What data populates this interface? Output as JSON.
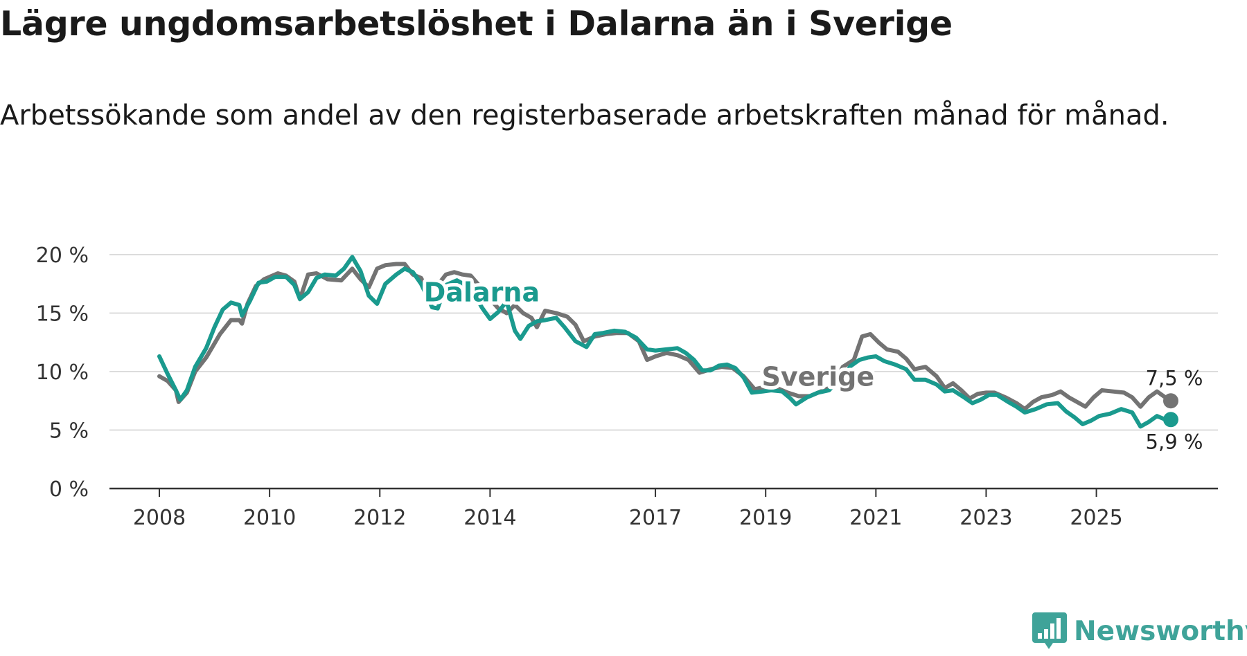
{
  "header": {
    "title": "Lägre ungdomsarbetslöshet i Dalarna än i Sverige",
    "subtitle": "Arbetssökande som andel av den registerbaserade arbetskraften månad för månad."
  },
  "brand": {
    "name": "Newsworthy",
    "color": "#3fa399",
    "icon": "newsworthy-logo-icon"
  },
  "chart_data": {
    "type": "line",
    "title": "Lägre ungdomsarbetslöshet i Dalarna än i Sverige",
    "subtitle": "Arbetssökande som andel av den registerbaserade arbetskraften månad för månad.",
    "xlabel": "",
    "ylabel": "",
    "xlim": [
      2008.0,
      2026.75
    ],
    "ylim": [
      0,
      20
    ],
    "grid": true,
    "x_ticks": [
      2008,
      2010,
      2012,
      2014,
      2017,
      2019,
      2021,
      2023,
      2025
    ],
    "x_tick_labels": [
      "2008",
      "2010",
      "2012",
      "2014",
      "2017",
      "2019",
      "2021",
      "2023",
      "2025"
    ],
    "y_ticks": [
      0,
      5,
      10,
      15,
      20
    ],
    "y_tick_labels": [
      "0 %",
      "5 %",
      "10 %",
      "15 %",
      "20 %"
    ],
    "series": [
      {
        "name": "Sverige",
        "label": "Sverige",
        "color": "#737373",
        "end_label": "7,5 %",
        "points": [
          [
            2008.0,
            9.6
          ],
          [
            2008.15,
            9.2
          ],
          [
            2008.3,
            8.4
          ],
          [
            2008.35,
            7.4
          ],
          [
            2008.5,
            8.2
          ],
          [
            2008.65,
            10.0
          ],
          [
            2008.85,
            11.2
          ],
          [
            2009.0,
            12.4
          ],
          [
            2009.1,
            13.2
          ],
          [
            2009.3,
            14.4
          ],
          [
            2009.45,
            14.4
          ],
          [
            2009.5,
            14.1
          ],
          [
            2009.6,
            15.8
          ],
          [
            2009.75,
            17.3
          ],
          [
            2009.9,
            17.9
          ],
          [
            2010.15,
            18.4
          ],
          [
            2010.3,
            18.2
          ],
          [
            2010.45,
            17.7
          ],
          [
            2010.55,
            16.2
          ],
          [
            2010.7,
            18.3
          ],
          [
            2010.85,
            18.4
          ],
          [
            2011.05,
            17.9
          ],
          [
            2011.3,
            17.8
          ],
          [
            2011.5,
            18.8
          ],
          [
            2011.65,
            17.9
          ],
          [
            2011.8,
            17.2
          ],
          [
            2011.95,
            18.8
          ],
          [
            2012.1,
            19.1
          ],
          [
            2012.3,
            19.2
          ],
          [
            2012.45,
            19.2
          ],
          [
            2012.6,
            18.3
          ],
          [
            2012.75,
            18.0
          ],
          [
            2012.85,
            17.0
          ],
          [
            2012.95,
            17.3
          ],
          [
            2013.05,
            17.4
          ],
          [
            2013.2,
            18.3
          ],
          [
            2013.35,
            18.5
          ],
          [
            2013.5,
            18.3
          ],
          [
            2013.65,
            18.2
          ],
          [
            2013.85,
            17.1
          ],
          [
            2014.0,
            16.2
          ],
          [
            2014.15,
            15.4
          ],
          [
            2014.3,
            15.0
          ],
          [
            2014.45,
            15.7
          ],
          [
            2014.6,
            15.0
          ],
          [
            2014.75,
            14.6
          ],
          [
            2014.85,
            13.8
          ],
          [
            2015.0,
            15.2
          ],
          [
            2015.2,
            15.0
          ],
          [
            2015.4,
            14.7
          ],
          [
            2015.55,
            14.0
          ],
          [
            2015.7,
            12.6
          ],
          [
            2015.9,
            13.0
          ],
          [
            2016.1,
            13.2
          ],
          [
            2016.3,
            13.3
          ],
          [
            2016.5,
            13.3
          ],
          [
            2016.7,
            12.6
          ],
          [
            2016.85,
            11.0
          ],
          [
            2017.0,
            11.3
          ],
          [
            2017.2,
            11.6
          ],
          [
            2017.4,
            11.4
          ],
          [
            2017.6,
            11.0
          ],
          [
            2017.8,
            9.9
          ],
          [
            2018.0,
            10.2
          ],
          [
            2018.2,
            10.4
          ],
          [
            2018.4,
            10.3
          ],
          [
            2018.6,
            9.6
          ],
          [
            2018.8,
            8.5
          ],
          [
            2019.0,
            8.7
          ],
          [
            2019.2,
            8.6
          ],
          [
            2019.4,
            8.2
          ],
          [
            2019.6,
            7.9
          ],
          [
            2019.8,
            7.9
          ],
          [
            2020.0,
            8.3
          ],
          [
            2020.2,
            8.7
          ],
          [
            2020.4,
            10.4
          ],
          [
            2020.6,
            11.0
          ],
          [
            2020.75,
            13.0
          ],
          [
            2020.9,
            13.2
          ],
          [
            2021.05,
            12.5
          ],
          [
            2021.2,
            11.9
          ],
          [
            2021.4,
            11.7
          ],
          [
            2021.55,
            11.1
          ],
          [
            2021.7,
            10.2
          ],
          [
            2021.9,
            10.4
          ],
          [
            2022.1,
            9.6
          ],
          [
            2022.25,
            8.6
          ],
          [
            2022.4,
            9.0
          ],
          [
            2022.55,
            8.4
          ],
          [
            2022.7,
            7.7
          ],
          [
            2022.85,
            8.1
          ],
          [
            2023.0,
            8.2
          ],
          [
            2023.15,
            8.2
          ],
          [
            2023.35,
            7.8
          ],
          [
            2023.55,
            7.3
          ],
          [
            2023.7,
            6.8
          ],
          [
            2023.85,
            7.4
          ],
          [
            2024.0,
            7.8
          ],
          [
            2024.2,
            8.0
          ],
          [
            2024.35,
            8.3
          ],
          [
            2024.5,
            7.8
          ],
          [
            2024.65,
            7.4
          ],
          [
            2024.8,
            7.0
          ],
          [
            2024.95,
            7.8
          ],
          [
            2025.1,
            8.4
          ],
          [
            2025.3,
            8.3
          ],
          [
            2025.5,
            8.2
          ],
          [
            2025.65,
            7.8
          ],
          [
            2025.8,
            7.0
          ],
          [
            2025.95,
            7.8
          ],
          [
            2026.1,
            8.3
          ],
          [
            2026.25,
            7.8
          ],
          [
            2026.35,
            7.5
          ]
        ]
      },
      {
        "name": "Dalarna",
        "label": "Dalarna",
        "color": "#1a9a8e",
        "end_label": "5,9 %",
        "points": [
          [
            2008.0,
            11.3
          ],
          [
            2008.15,
            9.8
          ],
          [
            2008.3,
            8.4
          ],
          [
            2008.38,
            7.6
          ],
          [
            2008.5,
            8.4
          ],
          [
            2008.65,
            10.4
          ],
          [
            2008.85,
            12.0
          ],
          [
            2009.0,
            13.8
          ],
          [
            2009.15,
            15.3
          ],
          [
            2009.3,
            15.9
          ],
          [
            2009.45,
            15.7
          ],
          [
            2009.5,
            14.8
          ],
          [
            2009.65,
            16.1
          ],
          [
            2009.8,
            17.6
          ],
          [
            2009.95,
            17.7
          ],
          [
            2010.1,
            18.1
          ],
          [
            2010.3,
            18.1
          ],
          [
            2010.45,
            17.4
          ],
          [
            2010.55,
            16.2
          ],
          [
            2010.7,
            16.8
          ],
          [
            2010.85,
            18.0
          ],
          [
            2011.0,
            18.3
          ],
          [
            2011.2,
            18.2
          ],
          [
            2011.35,
            18.8
          ],
          [
            2011.5,
            19.8
          ],
          [
            2011.65,
            18.6
          ],
          [
            2011.8,
            16.5
          ],
          [
            2011.95,
            15.8
          ],
          [
            2012.1,
            17.5
          ],
          [
            2012.3,
            18.3
          ],
          [
            2012.45,
            18.8
          ],
          [
            2012.6,
            18.5
          ],
          [
            2012.75,
            17.5
          ],
          [
            2012.85,
            16.5
          ],
          [
            2012.95,
            15.5
          ],
          [
            2013.05,
            15.4
          ],
          [
            2013.2,
            17.4
          ],
          [
            2013.4,
            17.8
          ],
          [
            2013.55,
            17.4
          ],
          [
            2013.7,
            16.8
          ],
          [
            2013.85,
            15.5
          ],
          [
            2014.0,
            14.5
          ],
          [
            2014.15,
            15.1
          ],
          [
            2014.3,
            16.0
          ],
          [
            2014.45,
            13.5
          ],
          [
            2014.55,
            12.8
          ],
          [
            2014.7,
            13.9
          ],
          [
            2014.85,
            14.3
          ],
          [
            2015.0,
            14.4
          ],
          [
            2015.2,
            14.6
          ],
          [
            2015.35,
            13.8
          ],
          [
            2015.55,
            12.6
          ],
          [
            2015.75,
            12.1
          ],
          [
            2015.9,
            13.2
          ],
          [
            2016.05,
            13.3
          ],
          [
            2016.25,
            13.5
          ],
          [
            2016.45,
            13.4
          ],
          [
            2016.65,
            12.9
          ],
          [
            2016.85,
            11.9
          ],
          [
            2017.0,
            11.8
          ],
          [
            2017.2,
            11.9
          ],
          [
            2017.4,
            12.0
          ],
          [
            2017.55,
            11.6
          ],
          [
            2017.7,
            11.0
          ],
          [
            2017.85,
            10.1
          ],
          [
            2018.0,
            10.1
          ],
          [
            2018.15,
            10.5
          ],
          [
            2018.3,
            10.6
          ],
          [
            2018.45,
            10.3
          ],
          [
            2018.6,
            9.5
          ],
          [
            2018.75,
            8.2
          ],
          [
            2018.95,
            8.3
          ],
          [
            2019.1,
            8.4
          ],
          [
            2019.3,
            8.3
          ],
          [
            2019.45,
            7.7
          ],
          [
            2019.55,
            7.2
          ],
          [
            2019.75,
            7.8
          ],
          [
            2019.95,
            8.2
          ],
          [
            2020.15,
            8.4
          ],
          [
            2020.35,
            9.4
          ],
          [
            2020.55,
            10.5
          ],
          [
            2020.7,
            11.0
          ],
          [
            2020.85,
            11.2
          ],
          [
            2021.0,
            11.3
          ],
          [
            2021.15,
            10.9
          ],
          [
            2021.35,
            10.6
          ],
          [
            2021.55,
            10.2
          ],
          [
            2021.7,
            9.3
          ],
          [
            2021.9,
            9.3
          ],
          [
            2022.1,
            8.9
          ],
          [
            2022.25,
            8.3
          ],
          [
            2022.4,
            8.4
          ],
          [
            2022.6,
            7.8
          ],
          [
            2022.75,
            7.3
          ],
          [
            2022.9,
            7.6
          ],
          [
            2023.05,
            8.0
          ],
          [
            2023.2,
            8.0
          ],
          [
            2023.4,
            7.4
          ],
          [
            2023.55,
            7.0
          ],
          [
            2023.7,
            6.5
          ],
          [
            2023.9,
            6.8
          ],
          [
            2024.1,
            7.2
          ],
          [
            2024.3,
            7.3
          ],
          [
            2024.45,
            6.6
          ],
          [
            2024.6,
            6.1
          ],
          [
            2024.75,
            5.5
          ],
          [
            2024.9,
            5.8
          ],
          [
            2025.05,
            6.2
          ],
          [
            2025.25,
            6.4
          ],
          [
            2025.45,
            6.8
          ],
          [
            2025.65,
            6.5
          ],
          [
            2025.8,
            5.3
          ],
          [
            2025.95,
            5.7
          ],
          [
            2026.1,
            6.2
          ],
          [
            2026.25,
            5.9
          ],
          [
            2026.35,
            5.9
          ]
        ]
      }
    ]
  }
}
